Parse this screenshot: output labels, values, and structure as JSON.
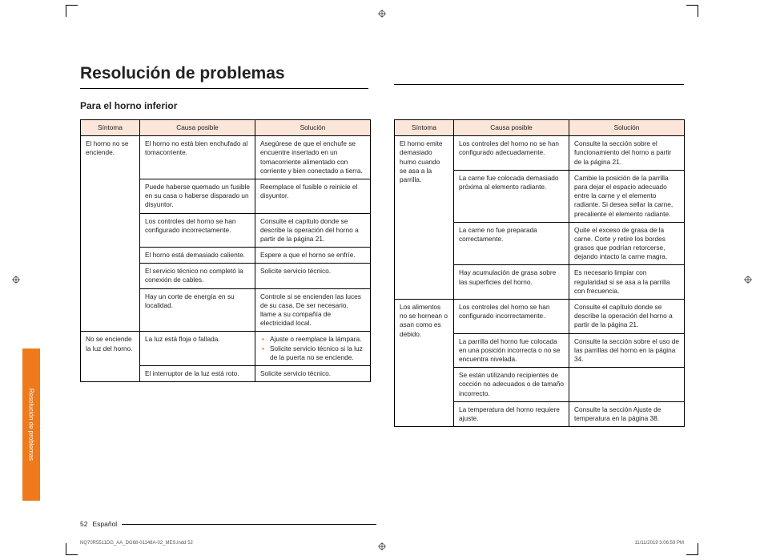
{
  "title": "Resolución de problemas",
  "subheading": "Para el horno inferior",
  "side_tab_label": "Resolución de problemas",
  "footer": {
    "page_number": "52",
    "language": "Español"
  },
  "slug": {
    "file": "NQ70R5511DG_AA_DG68-01148A-02_MES.indd   52",
    "timestamp": "11/11/2019   3:06:59 PM"
  },
  "headers": {
    "symptom": "Síntoma",
    "cause": "Causa posible",
    "solution": "Solución"
  },
  "left_table": [
    {
      "symptom": "El horno no se enciende.",
      "rows": [
        {
          "cause": "El horno no está bien enchufado al tomacorriente.",
          "solution": "Asegúrese de que el enchufe se encuentre insertado en un tomacorriente alimentado con corriente y bien conectado a tierra."
        },
        {
          "cause": "Puede haberse quemado un fusible en su casa o haberse disparado un disyuntor.",
          "solution": "Reemplace el fusible o reinicie el disyuntor."
        },
        {
          "cause": "Los controles del horno se han configurado incorrectamente.",
          "solution": "Consulte el capítulo donde se describe la operación del horno a partir de la página 21."
        },
        {
          "cause": "El horno está demasiado caliente.",
          "solution": "Espere a que el horno se enfríe."
        },
        {
          "cause": "El servicio técnico no completó la conexión de cables.",
          "solution": "Solicite servicio técnico."
        },
        {
          "cause": "Hay un corte de energía en su localidad.",
          "solution": "Controle si se encienden las luces de su casa. De ser necesario, llame a su compañía de electricidad local."
        }
      ]
    },
    {
      "symptom": "No se enciende la luz del horno.",
      "rows": [
        {
          "cause": "La luz está floja o fallada.",
          "bullets": [
            "Ajuste o reemplace la lámpara.",
            "Solicite servicio técnico si la luz de la puerta no se enciende."
          ]
        },
        {
          "cause": "El interruptor de la luz está roto.",
          "solution": "Solicite servicio técnico."
        }
      ]
    }
  ],
  "right_table": [
    {
      "symptom": "El horno emite demasiado humo cuando se asa a la parrilla.",
      "rows": [
        {
          "cause": "Los controles del horno no se han configurado adecuadamente.",
          "solution": "Consulte la sección sobre el funcionamiento del horno a partir de la página 21."
        },
        {
          "cause": "La carne fue colocada demasiado próxima al elemento radiante.",
          "solution": "Cambie la posición de la parrilla para dejar el espacio adecuado entre la carne y el elemento radiante. Si desea sellar la carne, precaliente el elemento radiante."
        },
        {
          "cause": "La carne no fue preparada correctamente.",
          "solution": "Quite el exceso de grasa de la carne. Corte y retire los bordes grasos que podrían retorcerse, dejando intacto la carne magra."
        },
        {
          "cause": "Hay acumulación de grasa sobre las superficies del horno.",
          "solution": "Es necesario limpiar con regularidad si se asa a la parrilla con frecuencia."
        }
      ]
    },
    {
      "symptom": "Los alimentos no se hornean o asan como es debido.",
      "rows": [
        {
          "cause": "Los controles del horno se han configurado incorrectamente.",
          "solution": "Consulte el capítulo donde se describe la operación del horno a partir de la página 21."
        },
        {
          "cause": "La parrilla del horno fue colocada en una posición incorrecta o no se encuentra nivelada.",
          "solution": "Consulte la sección sobre el uso de las parrillas del horno en la página 34."
        },
        {
          "cause": "Se están utilizando recipientes de cocción no adecuados o de tamaño incorrecto.",
          "solution": ""
        },
        {
          "cause": "La temperatura del horno requiere ajuste.",
          "solution": "Consulte la sección Ajuste de temperatura en la página 38."
        }
      ]
    }
  ]
}
